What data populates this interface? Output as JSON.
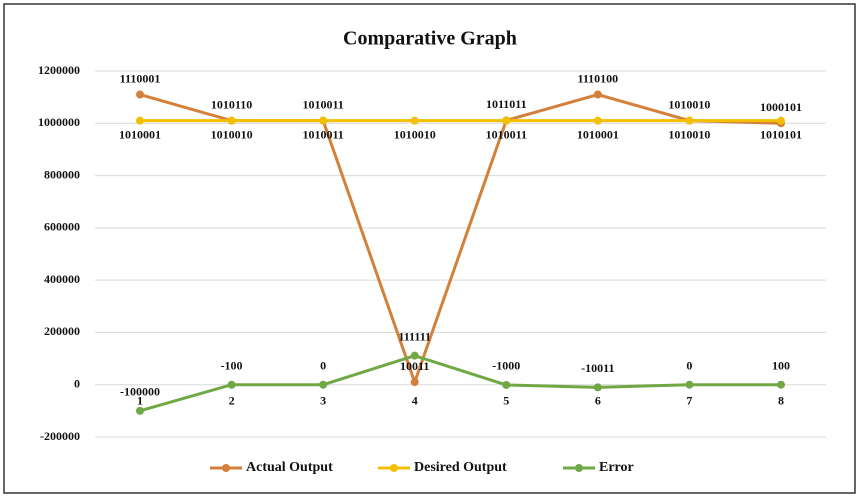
{
  "chart_data": {
    "type": "line",
    "title": "Comparative Graph",
    "categories": [
      "1",
      "2",
      "3",
      "4",
      "5",
      "6",
      "7",
      "8"
    ],
    "series": [
      {
        "name": "Actual Output",
        "color": "#d4803a",
        "values": [
          1110001,
          1010110,
          1010011,
          10011,
          1011011,
          1110100,
          1010010,
          1000101
        ]
      },
      {
        "name": "Desired Output",
        "color": "#f2c000",
        "values": [
          1010001,
          1010010,
          1010011,
          1010010,
          1010011,
          1010001,
          1010010,
          1010101
        ]
      },
      {
        "name": "Error",
        "color": "#70a845",
        "values": [
          -100000,
          -100,
          0,
          111111,
          -1000,
          -10011,
          0,
          100
        ]
      }
    ],
    "ylim": [
      -200000,
      1200000
    ],
    "yticks": [
      -200000,
      0,
      200000,
      400000,
      600000,
      800000,
      1000000,
      1200000
    ],
    "grid": true,
    "legend": "bottom"
  }
}
